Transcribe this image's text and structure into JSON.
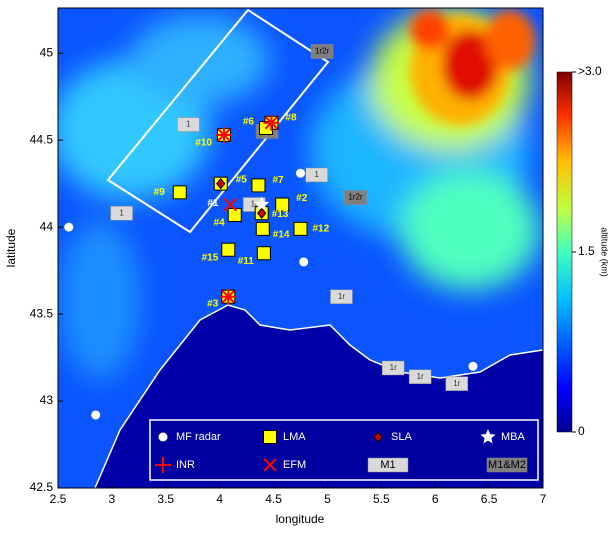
{
  "chart_data": {
    "type": "map",
    "xlabel": "longitude",
    "ylabel": "latitude",
    "xlim": [
      2.5,
      7
    ],
    "ylim": [
      42.5,
      45.26
    ],
    "xticks": [
      2.5,
      3,
      3.5,
      4,
      4.5,
      5,
      5.5,
      6,
      6.5,
      7
    ],
    "yticks": [
      42.5,
      43,
      43.5,
      44,
      44.5,
      45
    ],
    "colorbar": {
      "lim": [
        0,
        3
      ],
      "ticks": [
        {
          "value": 3,
          "label": ">3.0"
        },
        1.5,
        0
      ],
      "label": "altitude (km)"
    },
    "series": [
      {
        "name": "MF radar",
        "marker": "circle",
        "color": "#ffffff",
        "x": [
          2.6,
          2.85,
          4.75,
          4.78,
          6.35
        ],
        "values": [
          44.0,
          42.92,
          44.31,
          43.8,
          43.2
        ]
      },
      {
        "name": "LMA",
        "marker": "square",
        "color": "#ffff00",
        "x": [
          3.63,
          4.01,
          4.36,
          4.58,
          4.14,
          4.4,
          4.75,
          4.08,
          4.41,
          4.08,
          4.04,
          4.48,
          4.43,
          4.39
        ],
        "values": [
          44.2,
          44.25,
          44.24,
          44.13,
          44.07,
          43.99,
          43.99,
          43.87,
          43.85,
          43.6,
          44.53,
          44.6,
          44.57,
          44.08
        ],
        "point_labels": [
          "#9",
          "#5",
          "#7",
          "#2",
          "#4",
          "#14",
          "#12",
          "#15",
          "#11",
          "#3",
          "#10",
          "#8",
          "#6",
          "#13"
        ]
      },
      {
        "name": "SLA",
        "marker": "diamond",
        "color": "#d00000",
        "x": [
          4.01,
          4.39
        ],
        "values": [
          44.25,
          44.08
        ]
      },
      {
        "name": "MBA",
        "marker": "star",
        "color": "#ffffff",
        "x": [
          4.39
        ],
        "values": [
          44.13
        ]
      },
      {
        "name": "INR",
        "marker": "plus",
        "color": "#ff0000",
        "x": [
          4.04,
          4.48,
          4.08
        ],
        "values": [
          44.53,
          44.6,
          43.6
        ]
      },
      {
        "name": "EFM",
        "marker": "cross",
        "color": "#ff0000",
        "x": [
          4.1,
          4.04,
          4.48,
          4.08
        ],
        "values": [
          44.13,
          44.53,
          44.6,
          43.6
        ],
        "point_labels": [
          "#1",
          null,
          null,
          null
        ]
      },
      {
        "name": "M1",
        "marker": "box",
        "color": "#d9d9d9",
        "x": [
          3.71,
          4.9,
          3.09,
          4.32,
          5.13,
          5.61,
          5.86,
          6.2
        ],
        "values": [
          44.59,
          44.3,
          44.08,
          44.13,
          43.6,
          43.19,
          43.14,
          43.1
        ],
        "point_labels": [
          "1",
          "1",
          "1",
          "1r",
          "1r",
          "1r",
          "1r",
          "1r"
        ]
      },
      {
        "name": "M1&M2",
        "marker": "box",
        "color": "#7f7f7f",
        "x": [
          4.95,
          5.26,
          4.44
        ],
        "values": [
          45.01,
          44.17,
          44.55
        ],
        "point_labels": [
          "1r2r",
          "1r2r",
          "1r2r"
        ]
      }
    ]
  }
}
